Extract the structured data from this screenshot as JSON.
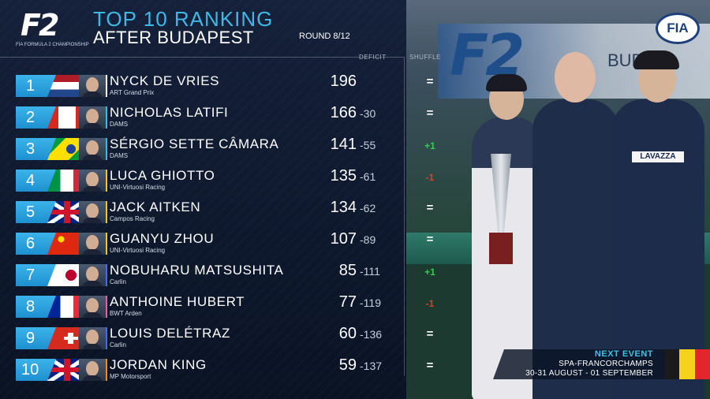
{
  "header": {
    "logo_text": "F2",
    "logo_sub": "FIA FORMULA 2 CHAMPIONSHIP",
    "title_line1": "TOP 10 RANKING",
    "title_line2": "AFTER BUDAPEST",
    "round": "ROUND 8/12",
    "col_deficit": "DEFICIT",
    "col_shuffle": "SHUFFLE"
  },
  "photo": {
    "banner_logo": "F2",
    "banner_city": "BUDAP",
    "badge": "FIA",
    "sponsor": "LAVAZZA"
  },
  "next_event": {
    "label": "NEXT EVENT",
    "venue": "SPA-FRANCORCHAMPS",
    "dates": "30-31 AUGUST - 01 SEPTEMBER",
    "flag_colors": [
      "#1a1a1a",
      "#f5d21c",
      "#e3262b"
    ]
  },
  "colors": {
    "accent_blue": "#3fb8e6",
    "up": "#2fd04a",
    "down": "#e8382c"
  },
  "rankings": [
    {
      "pos": "1",
      "name": "NYCK DE VRIES",
      "team": "ART Grand Prix",
      "points": "196",
      "deficit": "",
      "shuffle": "=",
      "trend": "same",
      "flag": "netherlands",
      "accent": "#ffffff"
    },
    {
      "pos": "2",
      "name": "NICHOLAS LATIFI",
      "team": "DAMS",
      "points": "166",
      "deficit": "-30",
      "shuffle": "=",
      "trend": "same",
      "flag": "canada",
      "accent": "#3fb8e6"
    },
    {
      "pos": "3",
      "name": "SÉRGIO SETTE CÂMARA",
      "team": "DAMS",
      "points": "141",
      "deficit": "-55",
      "shuffle": "+1",
      "trend": "up",
      "flag": "brazil",
      "accent": "#3fb8e6"
    },
    {
      "pos": "4",
      "name": "LUCA GHIOTTO",
      "team": "UNI-Virtuosi Racing",
      "points": "135",
      "deficit": "-61",
      "shuffle": "-1",
      "trend": "down",
      "flag": "italy",
      "accent": "#f2c230"
    },
    {
      "pos": "5",
      "name": "JACK AITKEN",
      "team": "Campos Racing",
      "points": "134",
      "deficit": "-62",
      "shuffle": "=",
      "trend": "same",
      "flag": "uk",
      "accent": "#f2c230"
    },
    {
      "pos": "6",
      "name": "GUANYU ZHOU",
      "team": "UNI-Virtuosi Racing",
      "points": "107",
      "deficit": "-89",
      "shuffle": "=",
      "trend": "same",
      "flag": "china",
      "accent": "#f2c230"
    },
    {
      "pos": "7",
      "name": "NOBUHARU MATSUSHITA",
      "team": "Carlin",
      "points": "85",
      "deficit": "-111",
      "shuffle": "+1",
      "trend": "up",
      "flag": "japan",
      "accent": "#3f6fe0"
    },
    {
      "pos": "8",
      "name": "ANTHOINE HUBERT",
      "team": "BWT Arden",
      "points": "77",
      "deficit": "-119",
      "shuffle": "-1",
      "trend": "down",
      "flag": "france",
      "accent": "#e85ca8"
    },
    {
      "pos": "9",
      "name": "LOUIS DELÉTRAZ",
      "team": "Carlin",
      "points": "60",
      "deficit": "-136",
      "shuffle": "=",
      "trend": "same",
      "flag": "switzerland",
      "accent": "#3f6fe0"
    },
    {
      "pos": "10",
      "name": "JORDAN KING",
      "team": "MP Motorsport",
      "points": "59",
      "deficit": "-137",
      "shuffle": "=",
      "trend": "same",
      "flag": "uk",
      "accent": "#f28a1e"
    }
  ]
}
